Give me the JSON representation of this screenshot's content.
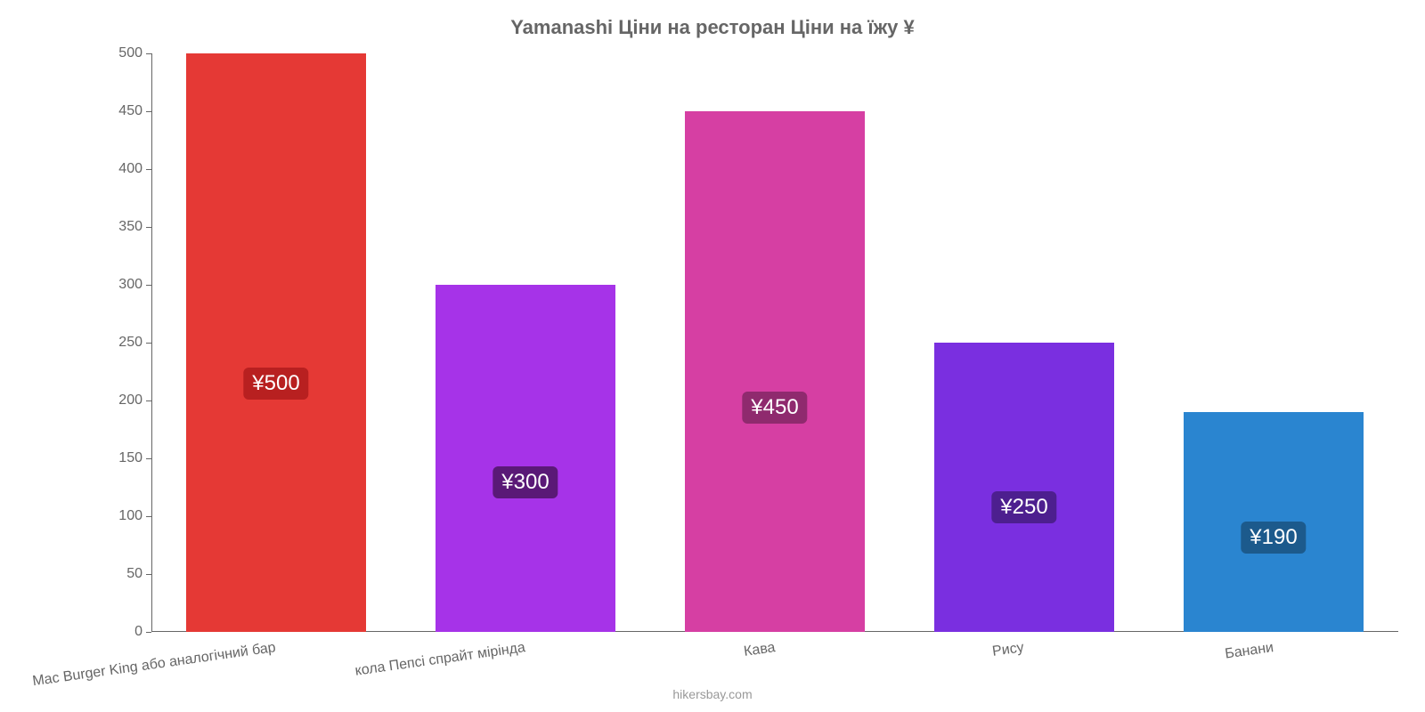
{
  "chart": {
    "type": "bar",
    "title": "Yamanashi Ціни на ресторан Ціни на їжу ¥",
    "title_fontsize": 22,
    "title_color": "#666666",
    "background_color": "#ffffff",
    "axis_color": "#666666",
    "tick_color": "#666666",
    "tick_fontsize": 16,
    "xlabel_fontsize": 16,
    "value_label_fontsize": 24,
    "credit": "hikersbay.com",
    "credit_fontsize": 14,
    "credit_color": "#999999",
    "ylim": [
      0,
      500
    ],
    "ytick_step": 50,
    "yticks": [
      "0",
      "50",
      "100",
      "150",
      "200",
      "250",
      "300",
      "350",
      "400",
      "450",
      "500"
    ],
    "categories": [
      "Mac Burger King або аналогічний бар",
      "кола Пепсі спрайт мірінда",
      "Кава",
      "Рису",
      "Банани"
    ],
    "values": [
      500,
      300,
      450,
      250,
      190
    ],
    "value_labels": [
      "¥500",
      "¥300",
      "¥450",
      "¥250",
      "¥190"
    ],
    "bar_colors": [
      "#e53935",
      "#a633e8",
      "#d63fa3",
      "#7a2fe0",
      "#2a85d0"
    ],
    "label_bg_colors": [
      "#b82020",
      "#5a1977",
      "#8f2a6e",
      "#4d1f8f",
      "#1c5a8c"
    ],
    "bar_width_ratio": 0.72,
    "xlabel_rotation_deg": -8
  }
}
